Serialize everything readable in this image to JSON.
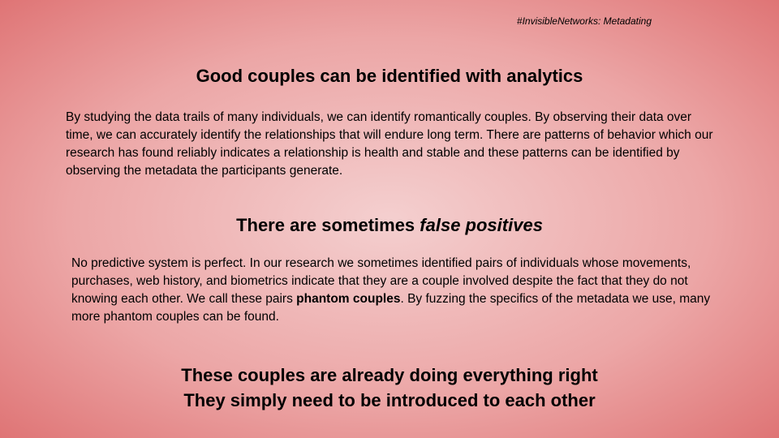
{
  "slide": {
    "tag": "#InvisibleNetworks: Metadating",
    "section1": {
      "heading": "Good couples can be identified with analytics",
      "body": "By studying the data trails of many individuals, we can identify romantically couples. By observing their data over time, we can accurately identify the relationships that will endure long term. There are patterns of behavior which our research has found reliably indicates a relationship is health and stable and these patterns can be identified by observing the metadata the participants generate."
    },
    "section2": {
      "heading_prefix": "There are sometimes ",
      "heading_emphasis": "false positives",
      "body_before": "No predictive system is perfect. In our research we sometimes identified pairs of individuals whose movements, purchases, web history, and biometrics indicate that they are a couple involved despite the fact that they do not knowing each other. We call these pairs ",
      "body_bold": "phantom couples",
      "body_after": ". By fuzzing the specifics of the metadata we use, many more phantom couples can be found."
    },
    "closing": {
      "line1": "These couples are already doing everything right",
      "line2": "They simply need to be introduced to each other"
    }
  }
}
